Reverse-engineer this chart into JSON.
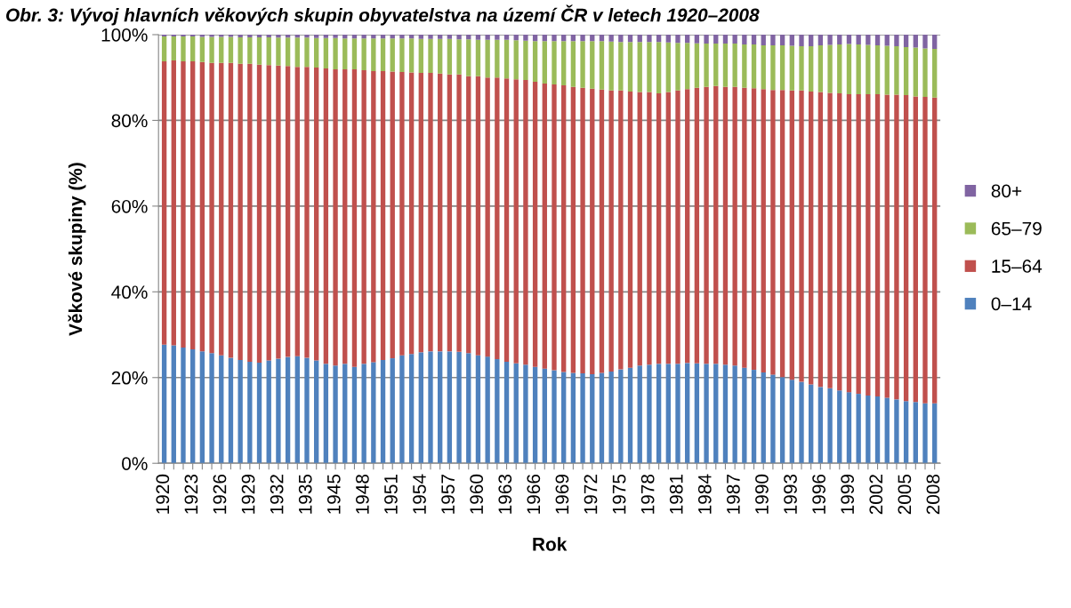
{
  "chart_data": {
    "type": "bar",
    "stacked": true,
    "title": "Obr. 3: Vývoj hlavních věkových skupin obyvatelstva na území ČR v letech 1920–2008",
    "xlabel": "Rok",
    "ylabel": "Věkové skupiny (%)",
    "categories": [
      "1920",
      null,
      null,
      "1923",
      null,
      null,
      "1926",
      null,
      null,
      "1929",
      null,
      null,
      "1932",
      null,
      null,
      "1935",
      null,
      null,
      "1945",
      null,
      null,
      "1948",
      null,
      null,
      "1951",
      null,
      null,
      "1954",
      null,
      null,
      "1957",
      null,
      null,
      "1960",
      null,
      null,
      "1963",
      null,
      null,
      "1966",
      null,
      null,
      "1969",
      null,
      null,
      "1972",
      null,
      null,
      "1975",
      null,
      null,
      "1978",
      null,
      null,
      "1981",
      null,
      null,
      "1984",
      null,
      null,
      "1987",
      null,
      null,
      "1990",
      null,
      null,
      "1993",
      null,
      null,
      "1996",
      null,
      null,
      "1999",
      null,
      null,
      "2002",
      null,
      null,
      "2005",
      null,
      null,
      "2008"
    ],
    "series": [
      {
        "name": "0–14",
        "color": "#4f81bd",
        "values": [
          27.7,
          27.5,
          27.0,
          26.6,
          26.1,
          25.7,
          25.2,
          24.6,
          24.1,
          23.7,
          23.5,
          24.0,
          24.4,
          24.8,
          25.0,
          24.6,
          24.0,
          23.2,
          22.8,
          23.2,
          22.5,
          23.2,
          23.6,
          24.1,
          24.5,
          25.2,
          25.5,
          25.9,
          26.1,
          26.1,
          26.1,
          26.0,
          25.7,
          25.2,
          24.9,
          24.3,
          23.7,
          23.3,
          23.0,
          22.5,
          22.1,
          21.7,
          21.3,
          21.1,
          21.0,
          20.8,
          21.1,
          21.4,
          21.9,
          22.3,
          22.8,
          23.0,
          23.2,
          23.2,
          23.2,
          23.4,
          23.3,
          23.2,
          23.2,
          23.0,
          22.8,
          22.3,
          21.8,
          21.2,
          20.7,
          20.1,
          19.5,
          19.0,
          18.4,
          17.8,
          17.5,
          17.0,
          16.6,
          16.2,
          15.8,
          15.6,
          15.3,
          14.9,
          14.5,
          14.3,
          14.0,
          14.0
        ]
      },
      {
        "name": "15–64",
        "color": "#c0504d",
        "values": [
          66.1,
          66.5,
          66.8,
          67.2,
          67.5,
          67.7,
          68.2,
          68.8,
          69.1,
          69.5,
          69.5,
          68.9,
          68.4,
          67.9,
          67.5,
          67.9,
          68.3,
          68.9,
          69.1,
          68.7,
          69.4,
          68.5,
          67.9,
          67.4,
          66.9,
          66.1,
          65.7,
          65.2,
          65.0,
          64.8,
          64.6,
          64.7,
          64.6,
          65.1,
          65.1,
          65.7,
          66.1,
          66.3,
          66.4,
          66.5,
          66.5,
          66.7,
          66.9,
          66.7,
          66.6,
          66.6,
          66.1,
          65.6,
          65.1,
          64.4,
          63.8,
          63.6,
          63.1,
          63.4,
          63.8,
          63.9,
          64.3,
          64.6,
          64.8,
          64.8,
          65.0,
          65.3,
          65.7,
          66.1,
          66.4,
          67.0,
          67.5,
          68.0,
          68.3,
          68.8,
          68.9,
          69.3,
          69.5,
          69.9,
          70.3,
          70.5,
          70.7,
          71.1,
          71.4,
          71.3,
          71.5,
          71.3
        ]
      },
      {
        "name": "65–79",
        "color": "#9bbb59",
        "values": [
          5.8,
          5.6,
          5.8,
          5.8,
          5.9,
          6.1,
          6.1,
          6.1,
          6.2,
          6.2,
          6.4,
          6.5,
          6.5,
          6.6,
          6.8,
          6.8,
          6.9,
          7.1,
          7.3,
          7.2,
          7.2,
          7.4,
          7.6,
          7.6,
          7.7,
          7.8,
          7.9,
          7.9,
          7.9,
          8.1,
          8.3,
          8.2,
          8.6,
          8.5,
          8.8,
          8.8,
          9.0,
          9.1,
          9.2,
          9.5,
          9.9,
          10.1,
          10.3,
          10.7,
          10.9,
          11.1,
          11.3,
          11.4,
          11.3,
          11.6,
          11.7,
          11.7,
          12.0,
          11.6,
          11.1,
          10.8,
          10.4,
          10.1,
          9.9,
          10.1,
          10.1,
          10.1,
          10.2,
          10.2,
          10.4,
          10.4,
          10.4,
          10.3,
          10.6,
          10.9,
          11.2,
          11.4,
          11.7,
          11.6,
          11.5,
          11.4,
          11.4,
          11.3,
          11.2,
          11.4,
          11.3,
          11.4
        ]
      },
      {
        "name": "80+",
        "color": "#8064a2",
        "values": [
          0.4,
          0.4,
          0.4,
          0.4,
          0.5,
          0.5,
          0.5,
          0.5,
          0.6,
          0.6,
          0.6,
          0.6,
          0.7,
          0.7,
          0.7,
          0.7,
          0.8,
          0.8,
          0.8,
          0.9,
          0.9,
          0.9,
          0.9,
          0.9,
          0.9,
          0.9,
          0.9,
          1.0,
          1.0,
          1.0,
          1.0,
          1.1,
          1.1,
          1.2,
          1.2,
          1.2,
          1.2,
          1.3,
          1.4,
          1.5,
          1.5,
          1.5,
          1.5,
          1.5,
          1.5,
          1.5,
          1.5,
          1.6,
          1.7,
          1.7,
          1.7,
          1.7,
          1.7,
          1.8,
          1.9,
          1.9,
          2.0,
          2.1,
          2.1,
          2.1,
          2.1,
          2.3,
          2.3,
          2.5,
          2.5,
          2.5,
          2.6,
          2.7,
          2.7,
          2.5,
          2.4,
          2.3,
          2.2,
          2.3,
          2.4,
          2.5,
          2.6,
          2.7,
          2.9,
          3.0,
          3.2,
          3.3
        ]
      }
    ],
    "ylim": [
      0,
      100
    ],
    "yticks": [
      {
        "value": 0,
        "label": "0%"
      },
      {
        "value": 20,
        "label": "20%"
      },
      {
        "value": 40,
        "label": "40%"
      },
      {
        "value": 60,
        "label": "60%"
      },
      {
        "value": 80,
        "label": "80%"
      },
      {
        "value": 100,
        "label": "100%"
      }
    ],
    "grid": "y",
    "legend": "right"
  }
}
